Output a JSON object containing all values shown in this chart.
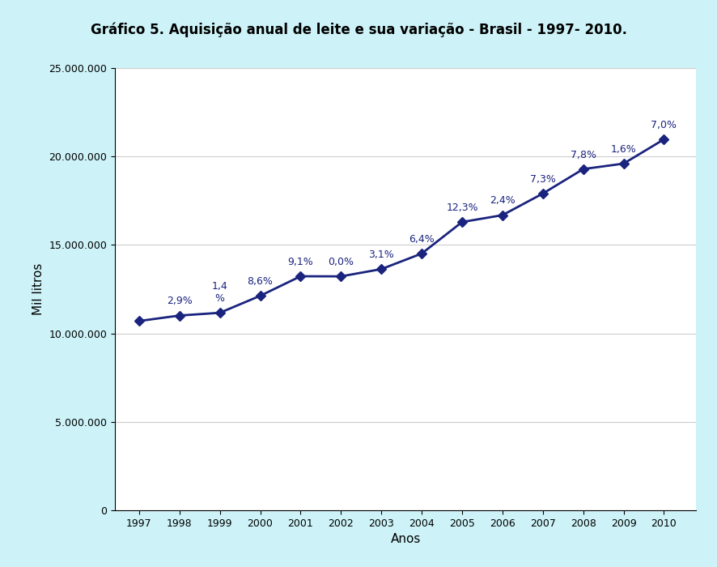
{
  "title": "Gráfico 5. Aquisição anual de leite e sua variação - Brasil - 1997- 2010.",
  "xlabel": "Anos",
  "ylabel": "Mil litros",
  "background_color": "#cdf3f8",
  "plot_background_color": "#ffffff",
  "line_color": "#1a237e",
  "marker_color": "#1a237e",
  "years": [
    1997,
    1998,
    1999,
    2000,
    2001,
    2002,
    2003,
    2004,
    2005,
    2006,
    2007,
    2008,
    2009,
    2010
  ],
  "values": [
    10700000,
    11010000,
    11165000,
    12125000,
    13230000,
    13224000,
    13634000,
    14514000,
    16296000,
    16685000,
    17906000,
    19289000,
    19598000,
    20970000
  ],
  "annotations": [
    "",
    "2,9%",
    "1,4\n%",
    "8,6%",
    "9,1%",
    "0,0%",
    "3,1%",
    "6,4%",
    "12,3%",
    "2,4%",
    "7,3%",
    "7,8%",
    "1,6%",
    "7,0%"
  ],
  "ylim": [
    0,
    25000000
  ],
  "yticks": [
    0,
    5000000,
    10000000,
    15000000,
    20000000,
    25000000
  ],
  "title_fontsize": 12,
  "axis_label_fontsize": 11,
  "tick_fontsize": 9,
  "annotation_fontsize": 9
}
